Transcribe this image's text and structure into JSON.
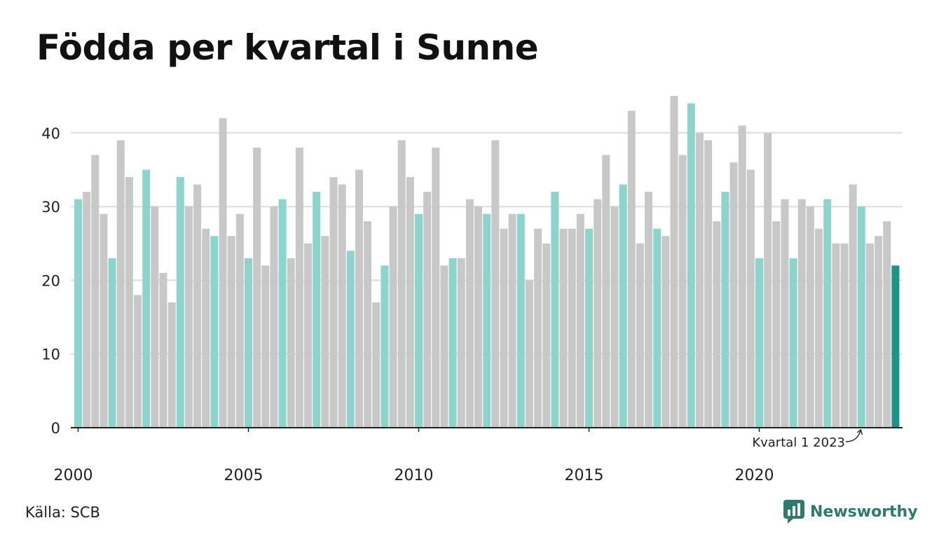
{
  "title": "Födda per kvartal i Sunne",
  "source": "Källa: SCB",
  "brand": {
    "name": "Newsworthy",
    "icon": "newsworthy-logo-icon"
  },
  "colors": {
    "q1": "#8dd5cc",
    "other": "#c8c8c8",
    "highlight": "#1f9385",
    "grid": "#e2e2e2",
    "axis": "#222222",
    "brand": "#2e7b6c"
  },
  "chart_data": {
    "type": "bar",
    "title": "Födda per kvartal i Sunne",
    "xlabel": "",
    "ylabel": "",
    "ylim": [
      0,
      45
    ],
    "yticks": [
      0,
      10,
      20,
      30,
      40
    ],
    "xticks": [
      "2000",
      "2005",
      "2010",
      "2015",
      "2020"
    ],
    "grid": true,
    "start": {
      "year": 2000,
      "quarter": 1
    },
    "values": [
      31,
      32,
      37,
      29,
      23,
      39,
      34,
      18,
      35,
      30,
      21,
      17,
      34,
      30,
      33,
      27,
      26,
      42,
      26,
      29,
      23,
      38,
      22,
      30,
      31,
      23,
      38,
      25,
      32,
      26,
      34,
      33,
      24,
      35,
      28,
      17,
      22,
      30,
      39,
      34,
      29,
      32,
      38,
      22,
      23,
      23,
      31,
      30,
      29,
      39,
      27,
      29,
      29,
      20,
      27,
      25,
      32,
      27,
      27,
      29,
      27,
      31,
      37,
      30,
      33,
      43,
      25,
      32,
      27,
      26,
      45,
      37,
      44,
      40,
      39,
      28,
      32,
      36,
      41,
      35,
      23,
      40,
      28,
      31,
      23,
      31,
      30,
      27,
      31,
      25,
      25,
      33,
      30,
      25,
      26,
      28,
      22
    ],
    "annotation": {
      "text": "Kvartal 1 2023",
      "index": 92
    }
  }
}
